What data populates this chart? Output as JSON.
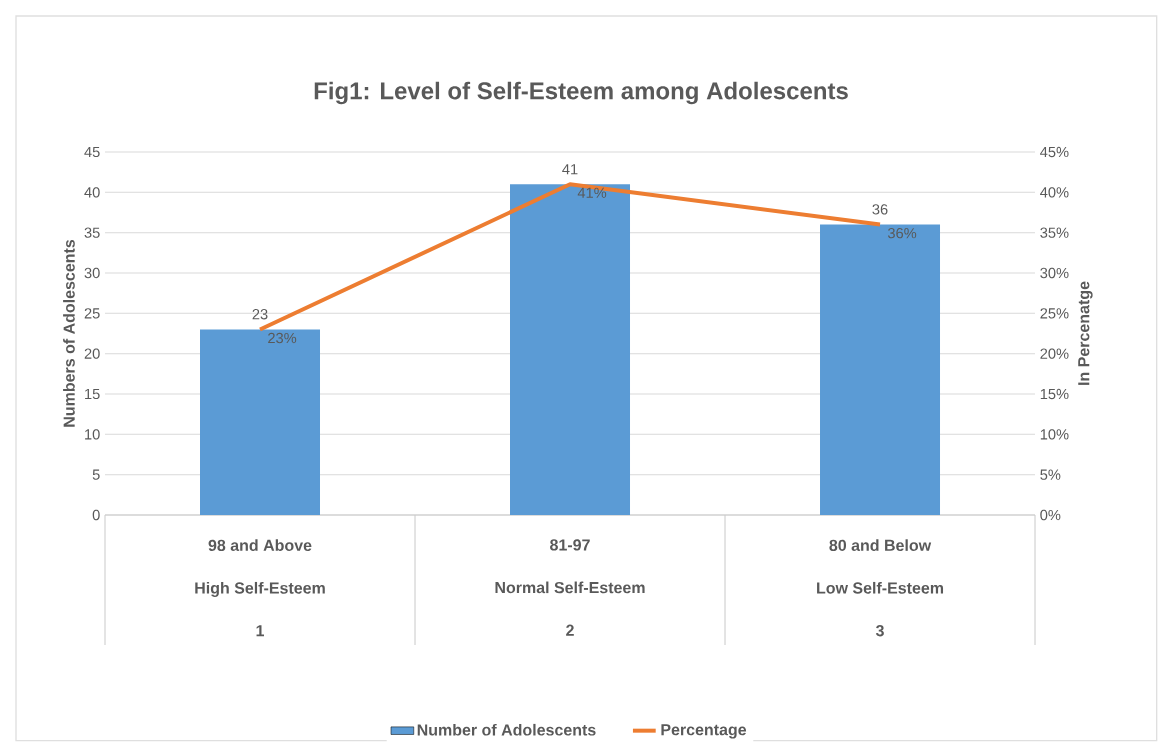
{
  "chart_data": {
    "type": "bar",
    "title": "Fig1: Level of Self-Esteem among Adolescents",
    "categories": [
      "98 and Above\nHigh Self-Esteem\n1",
      "81-97\nNormal Self-Esteem\n2",
      "80 and Below\nLow Self-Esteem\n3"
    ],
    "ylabel": "Numbers of Adolescents",
    "y2label": "In Percenatge",
    "ylim": [
      0,
      45
    ],
    "yticks": [
      0,
      5,
      10,
      15,
      20,
      25,
      30,
      35,
      40,
      45
    ],
    "y2lim": [
      0,
      45
    ],
    "y2ticks": [
      {
        "value": 0,
        "label": "0%"
      },
      {
        "value": 5,
        "label": "5%"
      },
      {
        "value": 10,
        "label": "10%"
      },
      {
        "value": 15,
        "label": "15%"
      },
      {
        "value": 20,
        "label": "20%"
      },
      {
        "value": 25,
        "label": "25%"
      },
      {
        "value": 30,
        "label": "30%"
      },
      {
        "value": 35,
        "label": "35%"
      },
      {
        "value": 40,
        "label": "40%"
      },
      {
        "value": 45,
        "label": "45%"
      }
    ],
    "grid": "y",
    "legend": "bottom",
    "series": [
      {
        "name": "Number of Adolescents",
        "color": "#5b9bd5",
        "values": [
          23,
          41,
          36
        ],
        "value_labels": [
          "23",
          "41",
          "36"
        ]
      },
      {
        "name": "Percentage",
        "type": "line",
        "axis": "y2",
        "color": "#ed7d31",
        "values": [
          23,
          41,
          36
        ],
        "value_labels": [
          "23%",
          "41%",
          "36%"
        ]
      }
    ]
  }
}
